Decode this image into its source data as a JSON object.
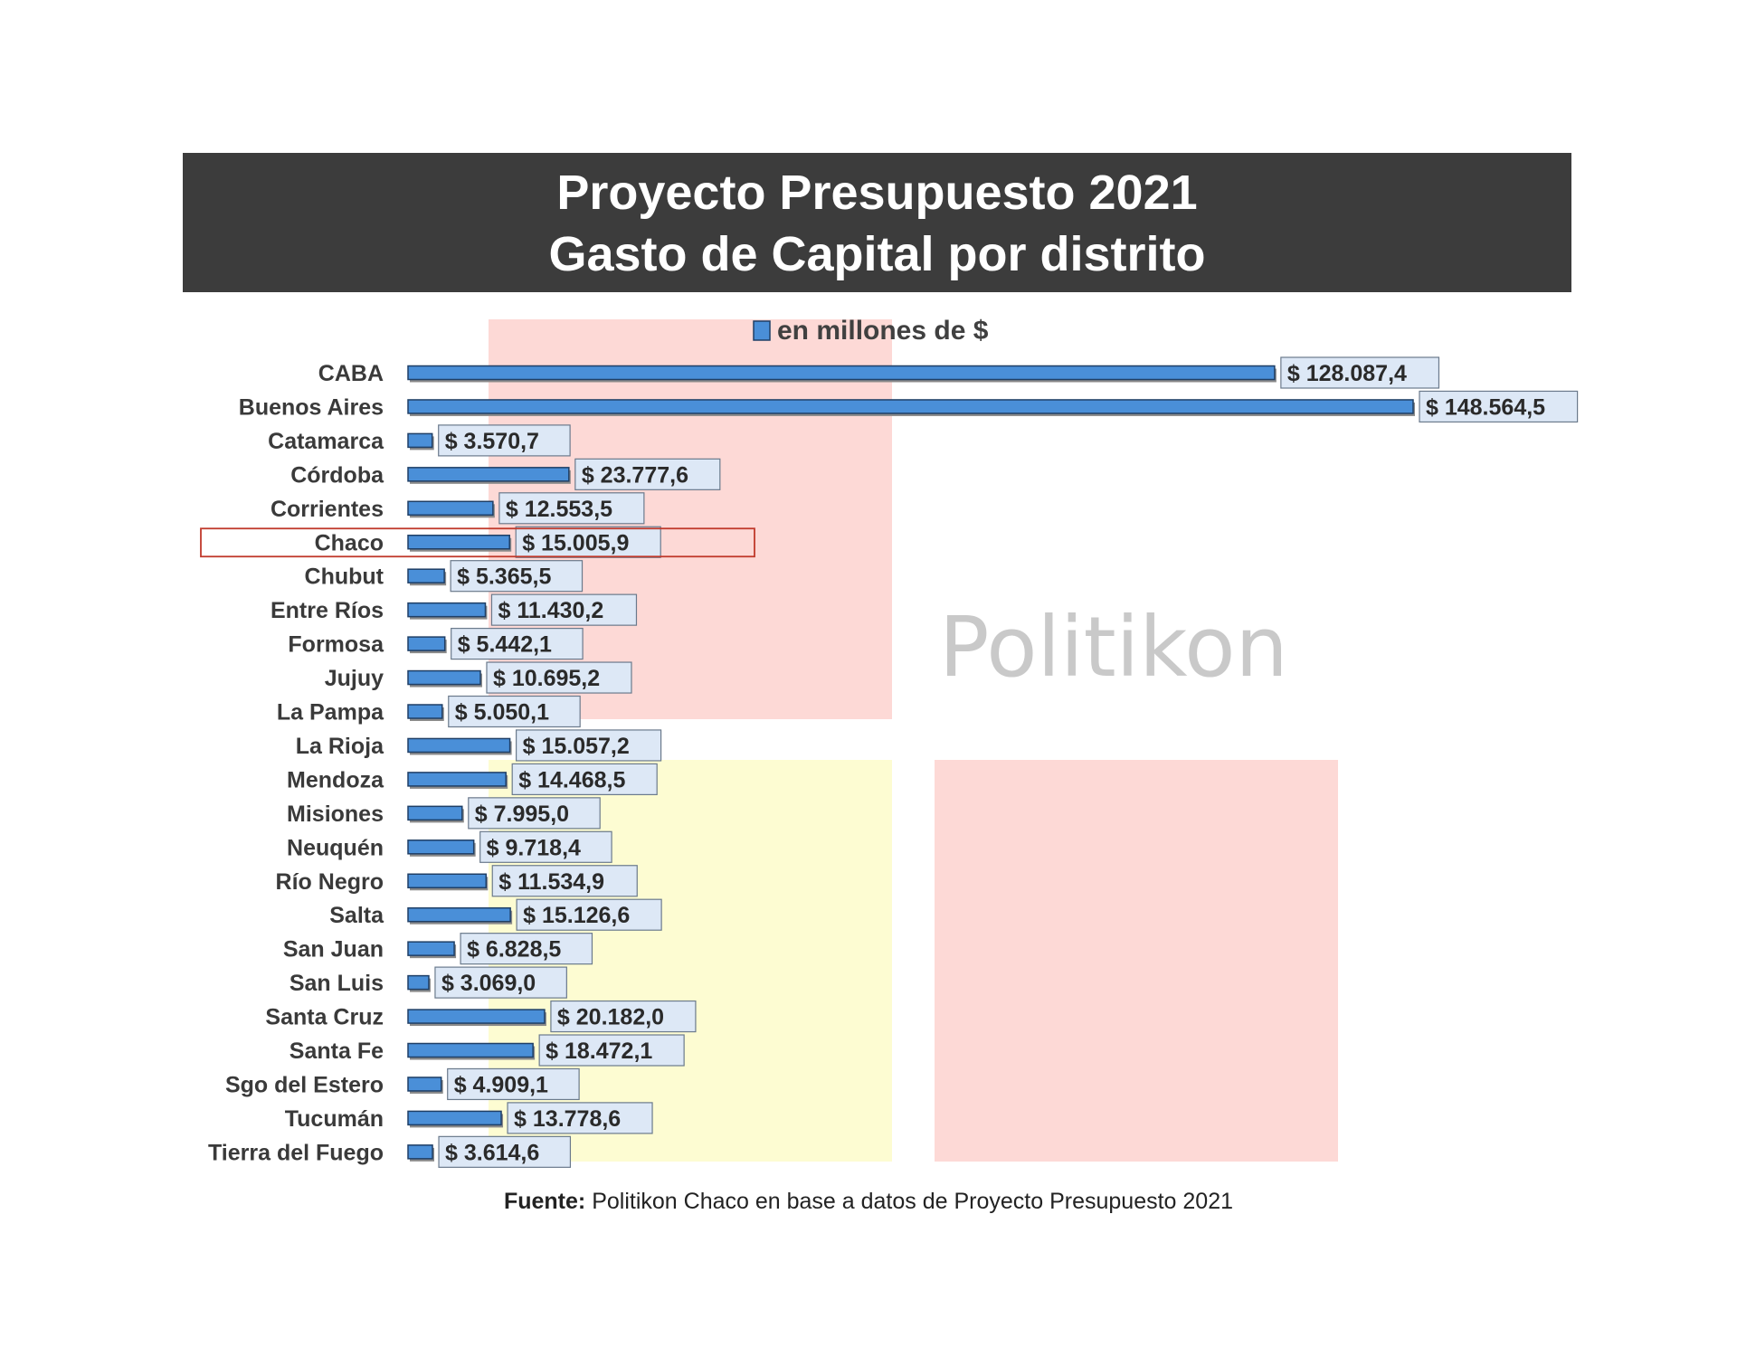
{
  "header": {
    "title_line1": "Proyecto Presupuesto 2021",
    "title_line2": "Gasto de Capital por distrito"
  },
  "source": {
    "label": "Fuente:",
    "text": "Politikon Chaco en base a datos de Proyecto Presupuesto 2021"
  },
  "watermark": {
    "text": "Politikon",
    "colors": {
      "red": "#fdd9d6",
      "yellow": "#fdfcd2",
      "text": "#c9c9c9"
    }
  },
  "highlight": {
    "category": "Chaco",
    "color": "#c0392b"
  },
  "colors": {
    "bar": "#4a8fd8",
    "bar_border": "#1f3f66",
    "label_bg": "#dde8f6",
    "label_border": "#6b7a8c"
  },
  "chart_data": {
    "type": "bar",
    "orientation": "horizontal",
    "title": "",
    "legend": {
      "position": "top",
      "entries": [
        "en millones de $"
      ]
    },
    "categories": [
      "CABA",
      "Buenos Aires",
      "Catamarca",
      "Córdoba",
      "Corrientes",
      "Chaco",
      "Chubut",
      "Entre Ríos",
      "Formosa",
      "Jujuy",
      "La Pampa",
      "La Rioja",
      "Mendoza",
      "Misiones",
      "Neuquén",
      "Río Negro",
      "Salta",
      "San Juan",
      "San Luis",
      "Santa Cruz",
      "Santa Fe",
      "Sgo del Estero",
      "Tucumán",
      "Tierra del Fuego"
    ],
    "series": [
      {
        "name": "en millones de $",
        "values": [
          128087.4,
          148564.5,
          3570.7,
          23777.6,
          12553.5,
          15005.9,
          5365.5,
          11430.2,
          5442.1,
          10695.2,
          5050.1,
          15057.2,
          14468.5,
          7995.0,
          9718.4,
          11534.9,
          15126.6,
          6828.5,
          3069.0,
          20182.0,
          18472.1,
          4909.1,
          13778.6,
          3614.6
        ],
        "labels": [
          "$ 128.087,4",
          "$ 148.564,5",
          "$ 3.570,7",
          "$ 23.777,6",
          "$ 12.553,5",
          "$ 15.005,9",
          "$ 5.365,5",
          "$ 11.430,2",
          "$ 5.442,1",
          "$ 10.695,2",
          "$ 5.050,1",
          "$ 15.057,2",
          "$ 14.468,5",
          "$ 7.995,0",
          "$ 9.718,4",
          "$ 11.534,9",
          "$ 15.126,6",
          "$ 6.828,5",
          "$ 3.069,0",
          "$ 20.182,0",
          "$ 18.472,1",
          "$ 4.909,1",
          "$ 13.778,6",
          "$ 3.614,6"
        ]
      }
    ],
    "xlim": [
      0,
      148564.5
    ],
    "grid": false,
    "xaxis_visible": false
  }
}
